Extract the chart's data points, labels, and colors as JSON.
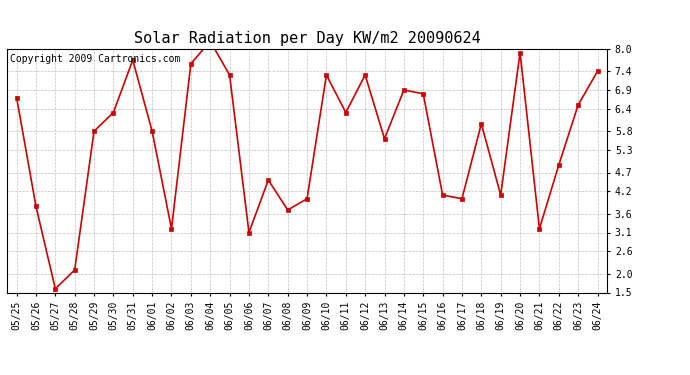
{
  "title": "Solar Radiation per Day KW/m2 20090624",
  "copyright": "Copyright 2009 Cartronics.com",
  "dates": [
    "05/25",
    "05/26",
    "05/27",
    "05/28",
    "05/29",
    "05/30",
    "05/31",
    "06/01",
    "06/02",
    "06/03",
    "06/04",
    "06/05",
    "06/06",
    "06/07",
    "06/08",
    "06/09",
    "06/10",
    "06/11",
    "06/12",
    "06/13",
    "06/14",
    "06/15",
    "06/16",
    "06/17",
    "06/18",
    "06/19",
    "06/20",
    "06/21",
    "06/22",
    "06/23",
    "06/24"
  ],
  "values": [
    6.7,
    3.8,
    1.6,
    2.1,
    5.8,
    6.3,
    7.7,
    5.8,
    3.2,
    7.6,
    8.2,
    7.3,
    3.1,
    4.5,
    3.7,
    4.0,
    7.3,
    6.3,
    7.3,
    5.6,
    6.9,
    6.8,
    4.1,
    4.0,
    6.0,
    4.1,
    7.9,
    3.2,
    4.9,
    6.5,
    7.4
  ],
  "line_color": "#cc0000",
  "marker_color": "#cc0000",
  "bg_color": "#ffffff",
  "plot_bg_color": "#ffffff",
  "grid_color": "#c0c0c0",
  "yticks": [
    1.5,
    2.0,
    2.6,
    3.1,
    3.6,
    4.2,
    4.7,
    5.3,
    5.8,
    6.4,
    6.9,
    7.4,
    8.0
  ],
  "ymin": 1.5,
  "ymax": 8.0,
  "title_fontsize": 11,
  "tick_fontsize": 7,
  "copyright_fontsize": 7
}
